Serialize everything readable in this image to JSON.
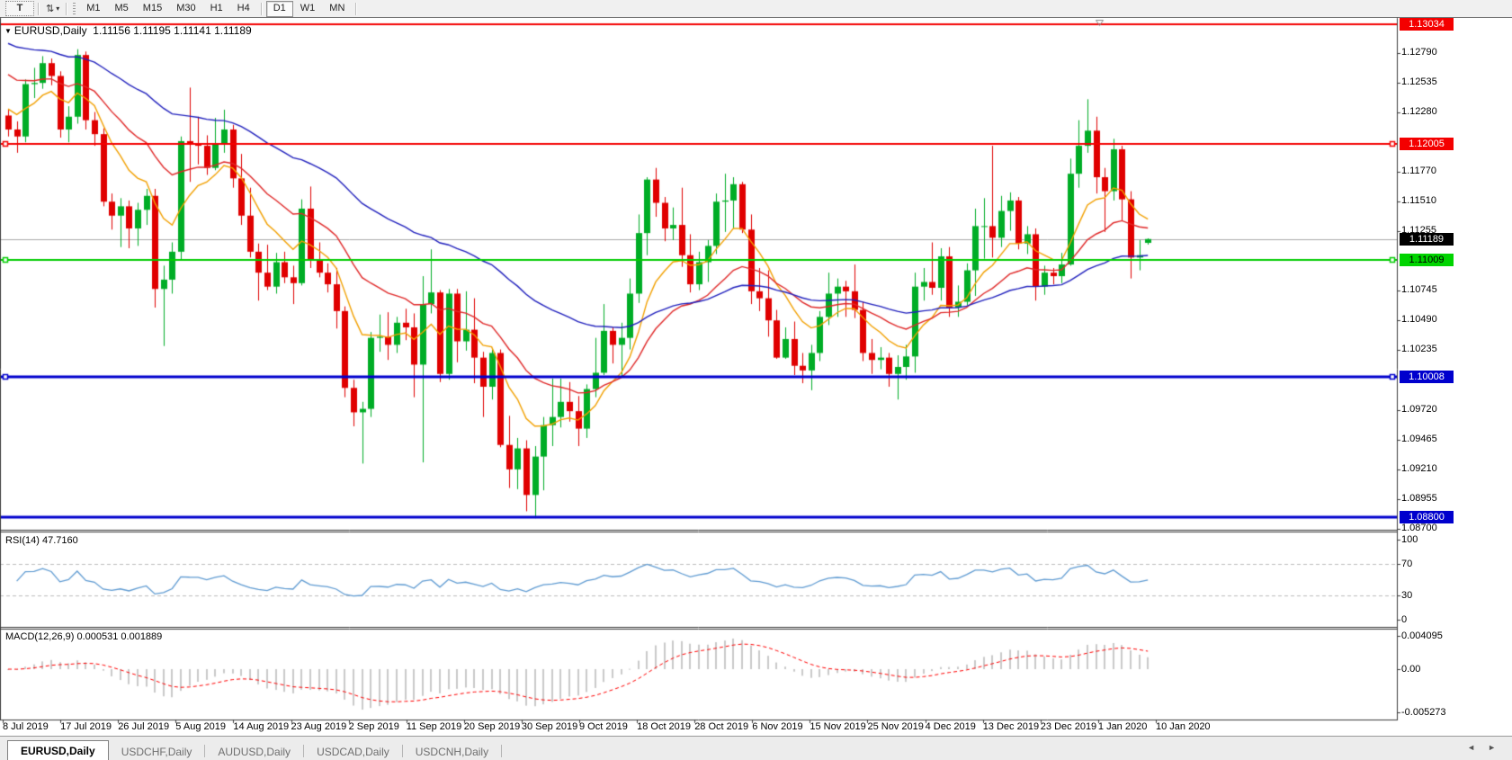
{
  "toolbar": {
    "text_tool_label": "T",
    "objects_tool_glyph": "⇅",
    "dropdown_caret": "▾",
    "timeframes": [
      "M1",
      "M5",
      "M15",
      "M30",
      "H1",
      "H4",
      "D1",
      "W1",
      "MN"
    ],
    "active_timeframe": "D1"
  },
  "header": {
    "symbol": "EURUSD,Daily",
    "ohlc_text": "1.11156 1.11195 1.11141 1.11189",
    "collapse_triangle": "▼"
  },
  "rsi_panel": {
    "label": "RSI(14) 47.7160",
    "axis_ticks": [
      {
        "label": "100",
        "value": 100
      },
      {
        "label": "70",
        "value": 70
      },
      {
        "label": "30",
        "value": 30
      },
      {
        "label": "0",
        "value": 0
      }
    ],
    "dashed_levels": [
      70,
      30
    ]
  },
  "macd_panel": {
    "label": "MACD(12,26,9) 0.000531 0.001889",
    "axis_ticks": [
      {
        "label": "0.004095",
        "value": 0.004095
      },
      {
        "label": "0.00",
        "value": 0
      },
      {
        "label": "-0.005273",
        "value": -0.005273
      }
    ]
  },
  "price_axis": {
    "ticks": [
      "1.12790",
      "1.12535",
      "1.12280",
      "1.11770",
      "1.11510",
      "1.11255",
      "1.10745",
      "1.10490",
      "1.10235",
      "1.09720",
      "1.09465",
      "1.09210",
      "1.08955",
      "1.08700"
    ],
    "badges": [
      {
        "label": "1.13034",
        "price": 1.13034,
        "bg": "#f40000",
        "fg": "#ffffff"
      },
      {
        "label": "1.12005",
        "price": 1.12005,
        "bg": "#f40000",
        "fg": "#ffffff"
      },
      {
        "label": "1.11189",
        "price": 1.11189,
        "bg": "#000000",
        "fg": "#ffffff"
      },
      {
        "label": "1.11009",
        "price": 1.11009,
        "bg": "#00d400",
        "fg": "#000000"
      },
      {
        "label": "1.10008",
        "price": 1.10008,
        "bg": "#0000cd",
        "fg": "#ffffff"
      },
      {
        "label": "1.08800",
        "price": 1.088,
        "bg": "#0000cd",
        "fg": "#ffffff"
      }
    ]
  },
  "tabs": [
    {
      "label": "EURUSD,Daily",
      "active": true
    },
    {
      "label": "USDCHF,Daily",
      "active": false
    },
    {
      "label": "AUDUSD,Daily",
      "active": false
    },
    {
      "label": "USDCAD,Daily",
      "active": false
    },
    {
      "label": "USDCNH,Daily",
      "active": false
    }
  ],
  "tab_scroll": {
    "left": "◄",
    "right": "►"
  },
  "chart_data": {
    "type": "candlestick",
    "symbol": "EURUSD",
    "timeframe": "Daily",
    "title": "EURUSD,Daily",
    "ohlc_header": {
      "open": 1.11156,
      "high": 1.11195,
      "low": 1.11141,
      "close": 1.11189
    },
    "ylim": [
      1.08684,
      1.1309
    ],
    "current_price": 1.11189,
    "x_labels": [
      "8 Jul 2019",
      "17 Jul 2019",
      "26 Jul 2019",
      "5 Aug 2019",
      "14 Aug 2019",
      "23 Aug 2019",
      "2 Sep 2019",
      "11 Sep 2019",
      "20 Sep 2019",
      "30 Sep 2019",
      "9 Oct 2019",
      "18 Oct 2019",
      "28 Oct 2019",
      "6 Nov 2019",
      "15 Nov 2019",
      "25 Nov 2019",
      "4 Dec 2019",
      "13 Dec 2019",
      "23 Dec 2019",
      "1 Jan 2020",
      "10 Jan 2020"
    ],
    "horizontal_levels": [
      {
        "price": 1.13034,
        "color": "#f40000",
        "width": 2,
        "handles": false
      },
      {
        "price": 1.12005,
        "color": "#f40000",
        "width": 2,
        "handles": true
      },
      {
        "price": 1.11009,
        "color": "#00cc00",
        "width": 2,
        "handles": true
      },
      {
        "price": 1.10008,
        "color": "#0000cd",
        "width": 3,
        "handles": true
      },
      {
        "price": 1.088,
        "color": "#0000cd",
        "width": 3,
        "handles": false
      }
    ],
    "moving_averages": [
      {
        "name": "fast",
        "period": 9,
        "seed": 1.1235,
        "color": "#f2a000"
      },
      {
        "name": "medium",
        "period": 21,
        "seed": 1.1265,
        "color": "#e02828"
      },
      {
        "name": "slow",
        "period": 50,
        "seed": 1.129,
        "color": "#2020bd"
      }
    ],
    "indicators": {
      "rsi": {
        "period": 14,
        "value": 47.716,
        "line_color": "#5f9bd2",
        "level_line_color": "#bdbdbd"
      },
      "macd": {
        "fast": 12,
        "slow": 26,
        "signal": 9,
        "main": 0.000531,
        "signal_value": 0.001889,
        "histogram_color": "#c9c9c9",
        "signal_color": "#ff0000"
      }
    },
    "up_color": "#00ad26",
    "down_color": "#e00000",
    "candles": [
      [
        1.1225,
        1.123,
        1.1207,
        1.1213
      ],
      [
        1.1213,
        1.122,
        1.1193,
        1.1207
      ],
      [
        1.1207,
        1.1256,
        1.1202,
        1.1252
      ],
      [
        1.1252,
        1.1266,
        1.124,
        1.1253
      ],
      [
        1.1253,
        1.1276,
        1.1248,
        1.127
      ],
      [
        1.127,
        1.1274,
        1.1251,
        1.1259
      ],
      [
        1.1259,
        1.1263,
        1.1206,
        1.1213
      ],
      [
        1.1213,
        1.1233,
        1.1202,
        1.1224
      ],
      [
        1.1224,
        1.1282,
        1.1218,
        1.1277
      ],
      [
        1.1277,
        1.128,
        1.1213,
        1.1221
      ],
      [
        1.1221,
        1.1228,
        1.1199,
        1.1209
      ],
      [
        1.1209,
        1.1214,
        1.1147,
        1.1151
      ],
      [
        1.1151,
        1.1158,
        1.1127,
        1.1139
      ],
      [
        1.1139,
        1.1154,
        1.1112,
        1.1147
      ],
      [
        1.1147,
        1.1152,
        1.1111,
        1.1128
      ],
      [
        1.1128,
        1.115,
        1.1113,
        1.1144
      ],
      [
        1.1144,
        1.1162,
        1.1131,
        1.1156
      ],
      [
        1.1156,
        1.1162,
        1.106,
        1.1076
      ],
      [
        1.1076,
        1.1096,
        1.1027,
        1.1084
      ],
      [
        1.1084,
        1.1116,
        1.1072,
        1.1108
      ],
      [
        1.1108,
        1.1207,
        1.1101,
        1.1203
      ],
      [
        1.1203,
        1.1249,
        1.1168,
        1.12
      ],
      [
        1.12,
        1.1224,
        1.1183,
        1.1199
      ],
      [
        1.1199,
        1.1208,
        1.1174,
        1.118
      ],
      [
        1.118,
        1.1223,
        1.1178,
        1.12
      ],
      [
        1.12,
        1.123,
        1.1193,
        1.1213
      ],
      [
        1.1213,
        1.1217,
        1.1163,
        1.1171
      ],
      [
        1.1171,
        1.1192,
        1.1131,
        1.1139
      ],
      [
        1.1139,
        1.1163,
        1.1103,
        1.1108
      ],
      [
        1.1108,
        1.1115,
        1.1066,
        1.109
      ],
      [
        1.109,
        1.1114,
        1.1075,
        1.1078
      ],
      [
        1.1078,
        1.1107,
        1.1072,
        1.1099
      ],
      [
        1.1099,
        1.1108,
        1.1081,
        1.1086
      ],
      [
        1.1086,
        1.1096,
        1.1063,
        1.1081
      ],
      [
        1.1081,
        1.1153,
        1.1079,
        1.1145
      ],
      [
        1.1145,
        1.1164,
        1.1094,
        1.1101
      ],
      [
        1.1101,
        1.1116,
        1.1086,
        1.109
      ],
      [
        1.109,
        1.1098,
        1.1073,
        1.108
      ],
      [
        1.108,
        1.1094,
        1.1042,
        1.1057
      ],
      [
        1.1057,
        1.1061,
        1.0983,
        1.0991
      ],
      [
        1.0991,
        1.0998,
        1.0958,
        1.097
      ],
      [
        1.097,
        1.0979,
        1.0926,
        1.0973
      ],
      [
        1.0973,
        1.1039,
        1.0966,
        1.1034
      ],
      [
        1.1034,
        1.1054,
        1.1022,
        1.1035
      ],
      [
        1.1035,
        1.1056,
        1.1015,
        1.1028
      ],
      [
        1.1028,
        1.1052,
        1.1021,
        1.1047
      ],
      [
        1.1047,
        1.1059,
        1.1032,
        1.1043
      ],
      [
        1.1043,
        1.1055,
        1.0983,
        1.1011
      ],
      [
        1.1011,
        1.1087,
        1.0927,
        1.1063
      ],
      [
        1.1063,
        1.111,
        1.1055,
        1.1073
      ],
      [
        1.1073,
        1.1075,
        1.0996,
        1.1003
      ],
      [
        1.1003,
        1.1076,
        1.0998,
        1.1072
      ],
      [
        1.1072,
        1.1076,
        1.1013,
        1.1031
      ],
      [
        1.1031,
        1.1074,
        1.1023,
        1.1041
      ],
      [
        1.1041,
        1.1068,
        1.0995,
        1.1017
      ],
      [
        1.1017,
        1.1022,
        1.0966,
        1.0992
      ],
      [
        1.0992,
        1.1024,
        1.0981,
        1.1021
      ],
      [
        1.1021,
        1.1024,
        1.094,
        1.0942
      ],
      [
        1.0942,
        1.0967,
        1.0905,
        1.0921
      ],
      [
        1.0921,
        1.0948,
        1.0904,
        1.0939
      ],
      [
        1.0939,
        1.0946,
        1.0885,
        1.0899
      ],
      [
        1.0899,
        1.0941,
        1.0879,
        1.0932
      ],
      [
        1.0932,
        1.0966,
        1.0903,
        1.0959
      ],
      [
        1.0959,
        1.0999,
        1.0941,
        1.0966
      ],
      [
        1.0966,
        1.0999,
        1.0957,
        1.0979
      ],
      [
        1.0979,
        1.0996,
        1.0962,
        1.0971
      ],
      [
        1.0971,
        1.0984,
        1.0941,
        1.0956
      ],
      [
        1.0956,
        1.0994,
        1.0948,
        1.099
      ],
      [
        1.099,
        1.1034,
        1.0983,
        1.1004
      ],
      [
        1.1004,
        1.1063,
        1.1002,
        1.104
      ],
      [
        1.104,
        1.1043,
        1.1012,
        1.1028
      ],
      [
        1.1028,
        1.1047,
        1.1001,
        1.1034
      ],
      [
        1.1034,
        1.1085,
        1.1024,
        1.1072
      ],
      [
        1.1072,
        1.114,
        1.1064,
        1.1124
      ],
      [
        1.1124,
        1.1172,
        1.1105,
        1.117
      ],
      [
        1.117,
        1.118,
        1.1138,
        1.115
      ],
      [
        1.115,
        1.1155,
        1.1117,
        1.1128
      ],
      [
        1.1128,
        1.1146,
        1.1118,
        1.1131
      ],
      [
        1.1131,
        1.1163,
        1.1095,
        1.1105
      ],
      [
        1.1105,
        1.1123,
        1.1073,
        1.108
      ],
      [
        1.108,
        1.1108,
        1.1075,
        1.1099
      ],
      [
        1.1099,
        1.1118,
        1.1082,
        1.1113
      ],
      [
        1.1113,
        1.1158,
        1.1106,
        1.1151
      ],
      [
        1.1151,
        1.1175,
        1.1125,
        1.1152
      ],
      [
        1.1152,
        1.1172,
        1.1128,
        1.1166
      ],
      [
        1.1166,
        1.1168,
        1.1124,
        1.1127
      ],
      [
        1.1127,
        1.114,
        1.1063,
        1.1074
      ],
      [
        1.1074,
        1.1094,
        1.1057,
        1.1068
      ],
      [
        1.1068,
        1.1092,
        1.1035,
        1.1049
      ],
      [
        1.1049,
        1.1058,
        1.1016,
        1.1017
      ],
      [
        1.1017,
        1.1043,
        1.1016,
        1.1033
      ],
      [
        1.1033,
        1.1048,
        1.1002,
        1.101
      ],
      [
        1.101,
        1.1021,
        1.0995,
        1.1006
      ],
      [
        1.1006,
        1.1028,
        1.0989,
        1.1021
      ],
      [
        1.1021,
        1.1057,
        1.1014,
        1.1052
      ],
      [
        1.1052,
        1.109,
        1.1045,
        1.1072
      ],
      [
        1.1072,
        1.1085,
        1.1052,
        1.1078
      ],
      [
        1.1078,
        1.1083,
        1.1052,
        1.1074
      ],
      [
        1.1074,
        1.1097,
        1.1051,
        1.1058
      ],
      [
        1.1058,
        1.1065,
        1.1014,
        1.1021
      ],
      [
        1.1021,
        1.1033,
        1.1003,
        1.1015
      ],
      [
        1.1015,
        1.1026,
        1.1007,
        1.1017
      ],
      [
        1.1017,
        1.1021,
        1.0992,
        1.1003
      ],
      [
        1.1003,
        1.1019,
        1.0981,
        1.1009
      ],
      [
        1.1009,
        1.1028,
        1.0998,
        1.1018
      ],
      [
        1.1018,
        1.109,
        1.1004,
        1.1078
      ],
      [
        1.1078,
        1.1094,
        1.1066,
        1.1082
      ],
      [
        1.1082,
        1.1116,
        1.1071,
        1.1077
      ],
      [
        1.1077,
        1.1111,
        1.1066,
        1.1104
      ],
      [
        1.1104,
        1.1112,
        1.1052,
        1.106
      ],
      [
        1.106,
        1.1079,
        1.1052,
        1.1065
      ],
      [
        1.1065,
        1.1098,
        1.1062,
        1.1092
      ],
      [
        1.1092,
        1.1145,
        1.107,
        1.113
      ],
      [
        1.113,
        1.1154,
        1.1102,
        1.113
      ],
      [
        1.113,
        1.1199,
        1.1103,
        1.112
      ],
      [
        1.112,
        1.1156,
        1.1112,
        1.1143
      ],
      [
        1.1143,
        1.1159,
        1.1126,
        1.1152
      ],
      [
        1.1152,
        1.1155,
        1.111,
        1.1115
      ],
      [
        1.1115,
        1.113,
        1.1106,
        1.1123
      ],
      [
        1.1123,
        1.1128,
        1.1066,
        1.1078
      ],
      [
        1.1078,
        1.1096,
        1.1071,
        1.109
      ],
      [
        1.109,
        1.1094,
        1.108,
        1.1087
      ],
      [
        1.1087,
        1.1107,
        1.1081,
        1.1097
      ],
      [
        1.1097,
        1.1188,
        1.1096,
        1.1175
      ],
      [
        1.1175,
        1.1221,
        1.1163,
        1.1199
      ],
      [
        1.1199,
        1.1239,
        1.1193,
        1.1212
      ],
      [
        1.1212,
        1.1224,
        1.1158,
        1.1172
      ],
      [
        1.1172,
        1.118,
        1.1125,
        1.116
      ],
      [
        1.116,
        1.1205,
        1.1152,
        1.1196
      ],
      [
        1.1196,
        1.1199,
        1.1135,
        1.1153
      ],
      [
        1.1153,
        1.116,
        1.1085,
        1.1103
      ],
      [
        1.1103,
        1.1118,
        1.1092,
        1.1105
      ],
      [
        1.11156,
        1.11195,
        1.11141,
        1.11189
      ]
    ]
  }
}
